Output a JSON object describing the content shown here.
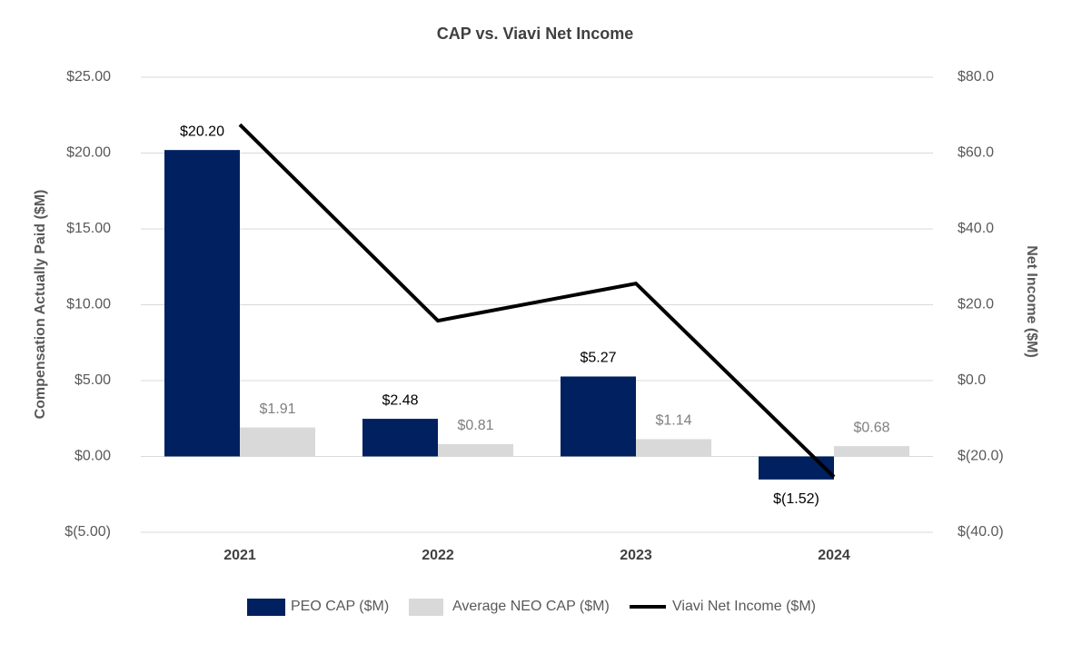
{
  "chart_data": {
    "type": "bar",
    "title": "CAP vs. Viavi Net Income",
    "y_label": "Compensation Actually Paid ($M)",
    "y2_label": "Net Income ($M)",
    "categories": [
      "2021",
      "2022",
      "2023",
      "2024"
    ],
    "series": [
      {
        "name": "PEO CAP ($M)",
        "type": "bar",
        "color": "#002060",
        "label_color": "#000000",
        "values": [
          20.2,
          2.48,
          5.27,
          -1.52
        ],
        "value_labels": [
          "$20.20",
          "$2.48",
          "$5.27",
          "$(1.52)"
        ]
      },
      {
        "name": "Average NEO CAP ($M)",
        "type": "bar",
        "color": "#d9d9d9",
        "label_color": "#7f7f7f",
        "values": [
          1.91,
          0.81,
          1.14,
          0.68
        ],
        "value_labels": [
          "$1.91",
          "$0.81",
          "$1.14",
          "$0.68"
        ]
      },
      {
        "name": "Viavi Net Income ($M)",
        "type": "line",
        "axis": "y2",
        "color": "#000000",
        "values": [
          67.5,
          15.8,
          25.6,
          -25.4
        ]
      }
    ],
    "ylim": [
      -5,
      25
    ],
    "yticks": [
      {
        "value": -5,
        "label": "$(5.00)"
      },
      {
        "value": 0,
        "label": "$0.00"
      },
      {
        "value": 5,
        "label": "$5.00"
      },
      {
        "value": 10,
        "label": "$10.00"
      },
      {
        "value": 15,
        "label": "$15.00"
      },
      {
        "value": 20,
        "label": "$20.00"
      },
      {
        "value": 25,
        "label": "$25.00"
      }
    ],
    "y2lim": [
      -40,
      80
    ],
    "y2ticks": [
      {
        "value": -40,
        "label": "$(40.0)"
      },
      {
        "value": -20,
        "label": "$(20.0)"
      },
      {
        "value": 0,
        "label": "$0.0"
      },
      {
        "value": 20,
        "label": "$20.0"
      },
      {
        "value": 40,
        "label": "$40.0"
      },
      {
        "value": 60,
        "label": "$60.0"
      },
      {
        "value": 80,
        "label": "$80.0"
      }
    ],
    "grid": true,
    "legend": "bottom"
  }
}
